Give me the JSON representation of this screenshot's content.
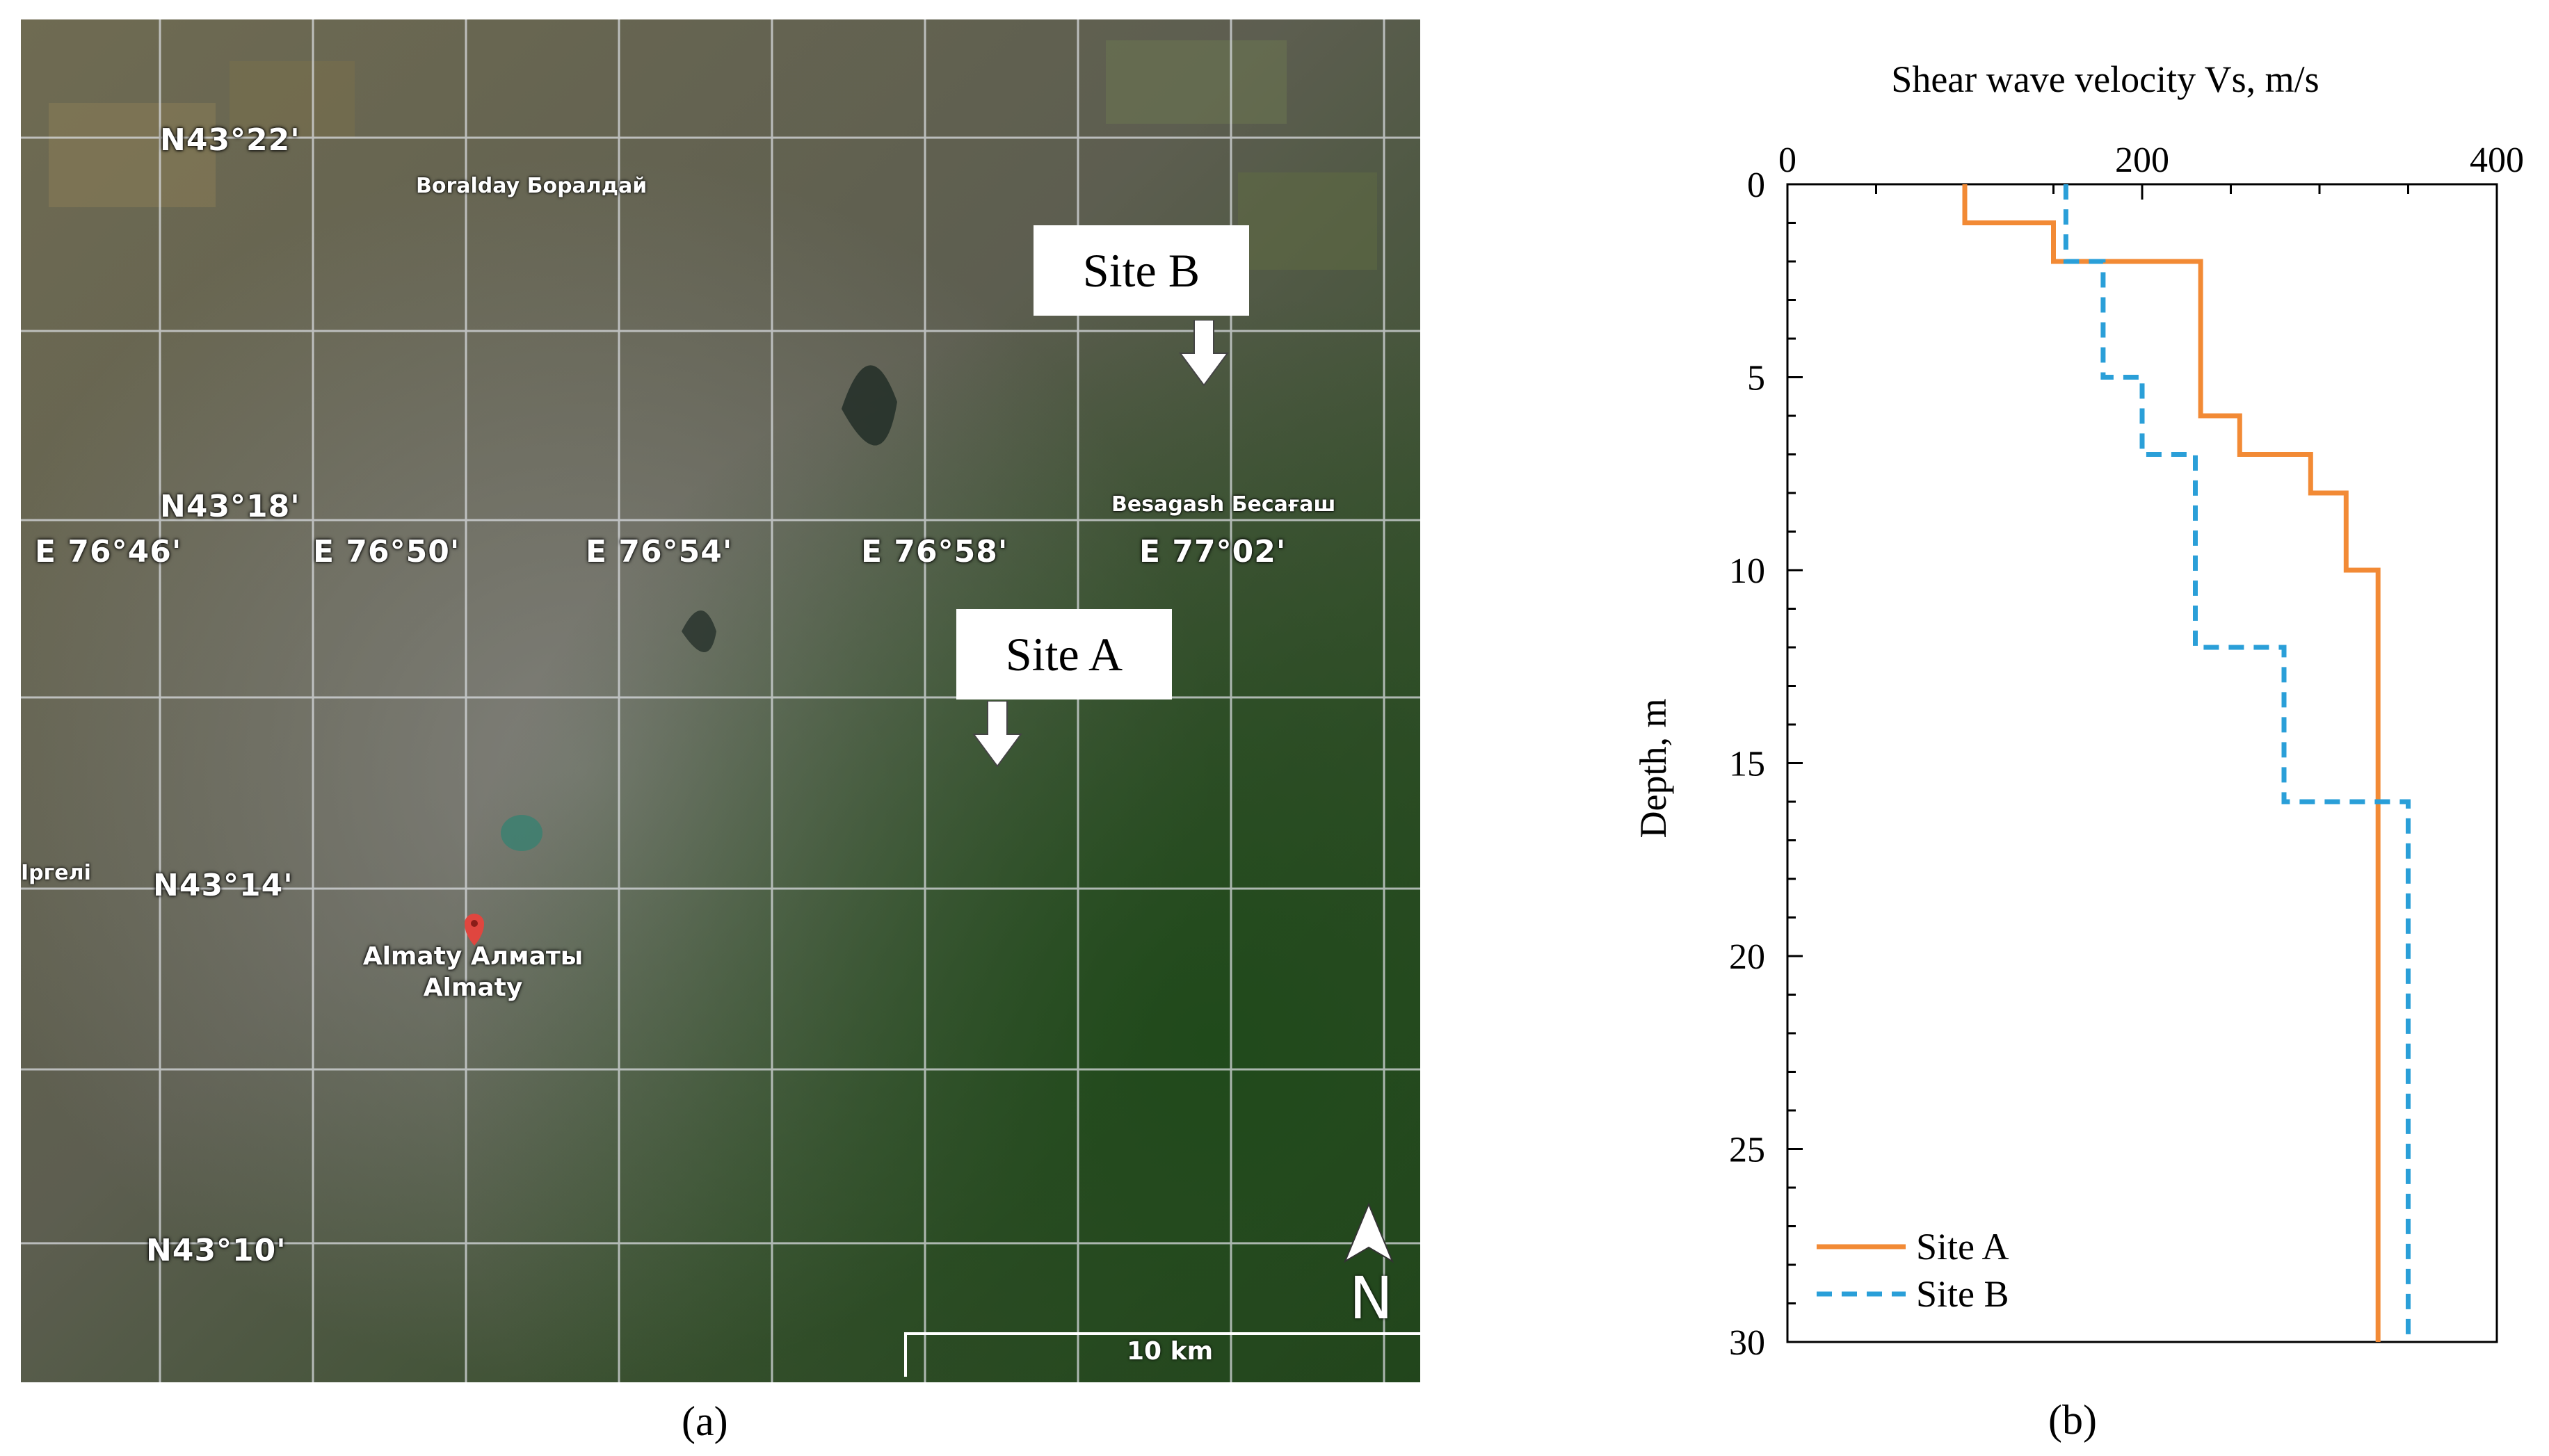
{
  "map": {
    "latitude_labels": [
      "N43°22'",
      "N43°18'",
      "N43°14'",
      "N43°10'"
    ],
    "longitude_labels": [
      "E 76°46'",
      "E 76°50'",
      "E 76°54'",
      "E 76°58'",
      "E 77°02'"
    ],
    "places": {
      "boralday": "Boralday Боралдай",
      "besagash": "Besagash Бесағаш",
      "irgeli": "Іргелі",
      "almaty_line1": "Almaty Алматы",
      "almaty_line2": "Almaty"
    },
    "site_a_label": "Site A",
    "site_b_label": "Site B",
    "scale_label": "10 km",
    "north_label": "N",
    "caption_a": "(a)"
  },
  "chart_data": {
    "type": "line",
    "title": "",
    "xlabel": "Shear wave velocity Vs, m/s",
    "ylabel": "Depth, m",
    "xlim": [
      0,
      400
    ],
    "ylim": [
      30,
      0
    ],
    "x_axis_position": "top",
    "x_ticks": [
      0,
      200,
      400
    ],
    "y_ticks": [
      0,
      5,
      10,
      15,
      20,
      25,
      30
    ],
    "legend_position": "bottom-left",
    "caption": "(b)",
    "series": [
      {
        "name": "Site A",
        "color": "#f28a35",
        "style": "solid",
        "points": [
          [
            100,
            0
          ],
          [
            100,
            1
          ],
          [
            150,
            1
          ],
          [
            150,
            2
          ],
          [
            233,
            2
          ],
          [
            233,
            6
          ],
          [
            255,
            6
          ],
          [
            255,
            7
          ],
          [
            295,
            7
          ],
          [
            295,
            8
          ],
          [
            315,
            8
          ],
          [
            315,
            10
          ],
          [
            333,
            10
          ],
          [
            333,
            30
          ]
        ]
      },
      {
        "name": "Site B",
        "color": "#2a9fd8",
        "style": "dashed",
        "points": [
          [
            157,
            0
          ],
          [
            157,
            2
          ],
          [
            178,
            2
          ],
          [
            178,
            5
          ],
          [
            200,
            5
          ],
          [
            200,
            7
          ],
          [
            230,
            7
          ],
          [
            230,
            12
          ],
          [
            280,
            12
          ],
          [
            280,
            16
          ],
          [
            350,
            16
          ],
          [
            350,
            30
          ]
        ]
      }
    ]
  }
}
